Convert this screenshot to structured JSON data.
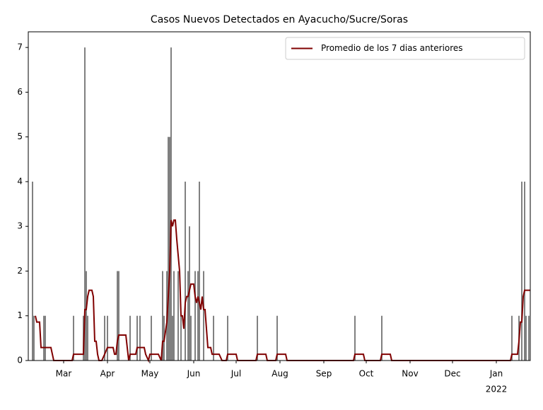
{
  "chart_data": {
    "type": "bar-line",
    "title": "Casos Nuevos Detectados en Ayacucho/Sucre/Soras",
    "xlim": [
      -25,
      330
    ],
    "ylim": [
      0,
      7.35
    ],
    "xticks": [
      {
        "value": 0,
        "label": "Mar"
      },
      {
        "value": 31,
        "label": "Apr"
      },
      {
        "value": 61,
        "label": "May"
      },
      {
        "value": 92,
        "label": "Jun"
      },
      {
        "value": 122,
        "label": "Jul"
      },
      {
        "value": 153,
        "label": "Aug"
      },
      {
        "value": 184,
        "label": "Sep"
      },
      {
        "value": 214,
        "label": "Oct"
      },
      {
        "value": 245,
        "label": "Nov"
      },
      {
        "value": 275,
        "label": "Dec"
      },
      {
        "value": 306,
        "label": "Jan"
      }
    ],
    "year_label": "2022",
    "yticks": [
      0,
      1,
      2,
      3,
      4,
      5,
      6,
      7
    ],
    "legend": "upper right",
    "bars": {
      "color": "#808080",
      "x": [
        -22,
        -21,
        -14,
        -13,
        7,
        14,
        15,
        16,
        17,
        29,
        31,
        38,
        39,
        47,
        52,
        54,
        62,
        70,
        71,
        73,
        74,
        75,
        76,
        77,
        78,
        81,
        83,
        86,
        88,
        89,
        90,
        93,
        95,
        96,
        99,
        106,
        116,
        137,
        151,
        206,
        225,
        317,
        322,
        324,
        326,
        327,
        329
      ],
      "values": [
        4,
        1,
        1,
        1,
        1,
        1,
        7,
        2,
        1,
        1,
        1,
        2,
        2,
        1,
        1,
        1,
        1,
        2,
        1,
        2,
        5,
        5,
        7,
        1,
        2,
        2,
        1,
        4,
        2,
        3,
        1,
        2,
        2,
        4,
        2,
        1,
        1,
        1,
        1,
        1,
        1,
        1,
        1,
        4,
        4,
        1,
        1
      ]
    },
    "series": [
      {
        "name": "Promedio de los 7 dias anteriores",
        "color": "#800000",
        "x": [
          -20,
          -19,
          -17,
          -16,
          -9,
          -7,
          6,
          7,
          14,
          15,
          16,
          17,
          18,
          20,
          21,
          22,
          23,
          24,
          25,
          27,
          29,
          31,
          35,
          36,
          37,
          38,
          39,
          44,
          46,
          47,
          51,
          52,
          57,
          58,
          60,
          61,
          67,
          69,
          70,
          71,
          73,
          75,
          76,
          77,
          78,
          79,
          80,
          82,
          83,
          84,
          85,
          86,
          87,
          88,
          89,
          90,
          92,
          93,
          94,
          95,
          96,
          97,
          98,
          99,
          100,
          101,
          102,
          104,
          105,
          110,
          112,
          115,
          116,
          122,
          123,
          136,
          137,
          143,
          144,
          150,
          151,
          157,
          158,
          205,
          206,
          212,
          213,
          224,
          225,
          231,
          232,
          316,
          317,
          321,
          322,
          323,
          324,
          325,
          326,
          330
        ],
        "values": [
          1.0,
          0.86,
          0.86,
          0.29,
          0.29,
          0,
          0,
          0.14,
          0.14,
          1.14,
          1.14,
          1.43,
          1.57,
          1.57,
          1.43,
          0.43,
          0.43,
          0.14,
          0,
          0,
          0.14,
          0.29,
          0.29,
          0.14,
          0.14,
          0.43,
          0.57,
          0.57,
          0,
          0.14,
          0.14,
          0.29,
          0.29,
          0.14,
          0,
          0.14,
          0.14,
          0,
          0.43,
          0.43,
          0.86,
          2.0,
          3.14,
          3.0,
          3.14,
          3.14,
          2.71,
          2.0,
          1.0,
          1.0,
          0.71,
          1.29,
          1.43,
          1.43,
          1.57,
          1.71,
          1.71,
          1.43,
          1.29,
          1.43,
          1.29,
          1.14,
          1.43,
          1.14,
          1.14,
          0.71,
          0.29,
          0.29,
          0.14,
          0.14,
          0,
          0,
          0.14,
          0.14,
          0,
          0,
          0.14,
          0.14,
          0,
          0,
          0.14,
          0.14,
          0,
          0,
          0.14,
          0.14,
          0,
          0,
          0.14,
          0.14,
          0,
          0,
          0.14,
          0.14,
          0.43,
          0.86,
          0.86,
          1.43,
          1.57,
          1.57
        ]
      }
    ]
  }
}
